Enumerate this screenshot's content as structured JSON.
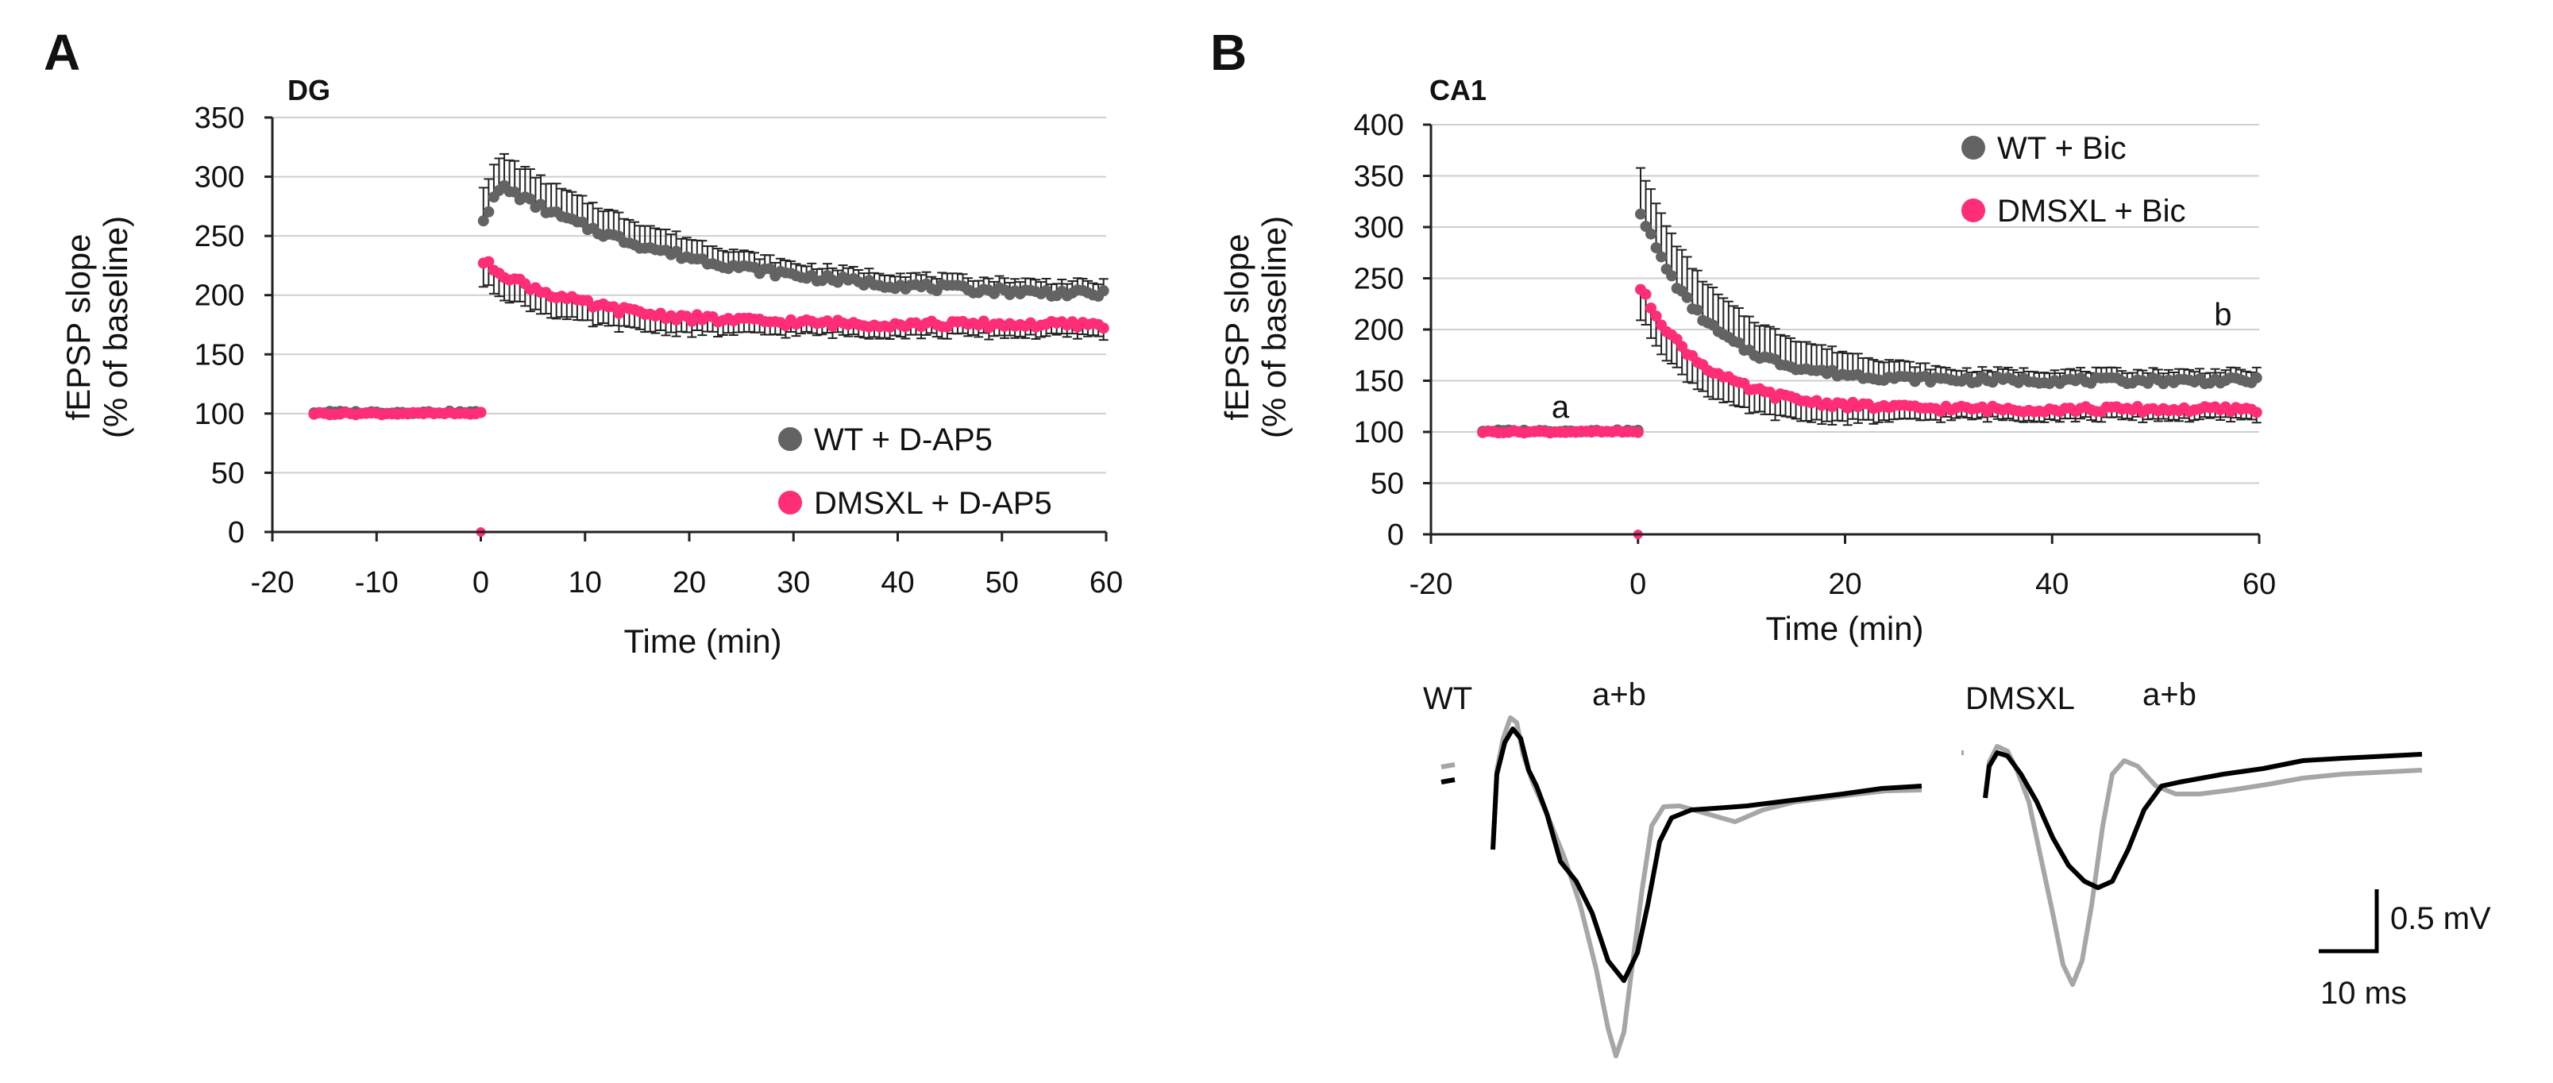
{
  "colors": {
    "wt": "#636363",
    "dmsxl": "#ff2d78",
    "error": "#222222",
    "grid": "#cfcfcf",
    "axis": "#222222",
    "trace_before": "#000000",
    "trace_after": "#a6a6a6"
  },
  "chart_data": [
    {
      "id": "A",
      "panel_letter": "A",
      "title": "DG",
      "type": "scatter",
      "xlabel": "Time (min)",
      "ylabel_line1": "fEPSP slope",
      "ylabel_line2": "(% of baseline)",
      "xlim": [
        -20,
        60
      ],
      "ylim": [
        0,
        350
      ],
      "xticks": [
        -20,
        -10,
        0,
        10,
        20,
        30,
        40,
        50,
        60
      ],
      "yticks": [
        0,
        50,
        100,
        150,
        200,
        250,
        300,
        350
      ],
      "grid": true,
      "legend_position": "bottom-right",
      "stim_time": 0,
      "series": [
        {
          "name": "WT + D-AP5",
          "color_key": "wt",
          "error_direction": "up",
          "baseline": {
            "t_start": -16,
            "t_end": 0,
            "value": 101,
            "sem": 4
          },
          "post": {
            "t_start": 0.25,
            "t_end": 60,
            "peak_time": 2,
            "peak": 292,
            "first": 265,
            "end": 197,
            "tau": 18,
            "sem_start": 28,
            "sem_end": 10
          }
        },
        {
          "name": "DMSXL + D-AP5",
          "color_key": "dmsxl",
          "error_direction": "down",
          "baseline": {
            "t_start": -16,
            "t_end": 0,
            "value": 100,
            "sem": 3
          },
          "post": {
            "t_start": 0.25,
            "t_end": 60,
            "peak_time": 0.3,
            "peak": 228,
            "first": 228,
            "end": 175,
            "tau": 9,
            "sem_start": 20,
            "sem_end": 10
          }
        }
      ]
    },
    {
      "id": "B",
      "panel_letter": "B",
      "title": "CA1",
      "type": "scatter",
      "xlabel": "Time (min)",
      "ylabel_line1": "fEPSP slope",
      "ylabel_line2": "(% of baseline)",
      "xlim": [
        -20,
        60
      ],
      "ylim": [
        0,
        400
      ],
      "xticks": [
        -20,
        0,
        20,
        40,
        60
      ],
      "yticks": [
        0,
        50,
        100,
        150,
        200,
        250,
        300,
        350,
        400
      ],
      "grid": true,
      "legend_position": "top-right",
      "stim_time": 0,
      "annotations": [
        {
          "text": "a",
          "x": -7.5,
          "y": 125
        },
        {
          "text": "b",
          "x": 56.5,
          "y": 215
        }
      ],
      "series": [
        {
          "name": "WT + Bic",
          "color_key": "wt",
          "error_direction": "up",
          "baseline": {
            "t_start": -15,
            "t_end": 0,
            "value": 101,
            "sem": 3
          },
          "post": {
            "t_start": 0.25,
            "t_end": 60,
            "peak_time": 0.3,
            "peak": 315,
            "first": 315,
            "end": 150,
            "tau": 6,
            "sem_start": 45,
            "sem_end": 10
          }
        },
        {
          "name": "DMSXL + Bic",
          "color_key": "dmsxl",
          "error_direction": "down",
          "baseline": {
            "t_start": -15,
            "t_end": 0,
            "value": 100,
            "sem": 3
          },
          "post": {
            "t_start": 0.25,
            "t_end": 60,
            "peak_time": 0.3,
            "peak": 240,
            "first": 240,
            "end": 122,
            "tau": 6,
            "sem_start": 30,
            "sem_end": 10
          }
        }
      ]
    }
  ],
  "traces": {
    "wt_label": "WT",
    "dmsxl_label": "DMSXL",
    "condition_label": "a+b",
    "legend_before": "a",
    "legend_after": "b",
    "scale_voltage": "0.5 mV",
    "scale_time": "10 ms"
  }
}
